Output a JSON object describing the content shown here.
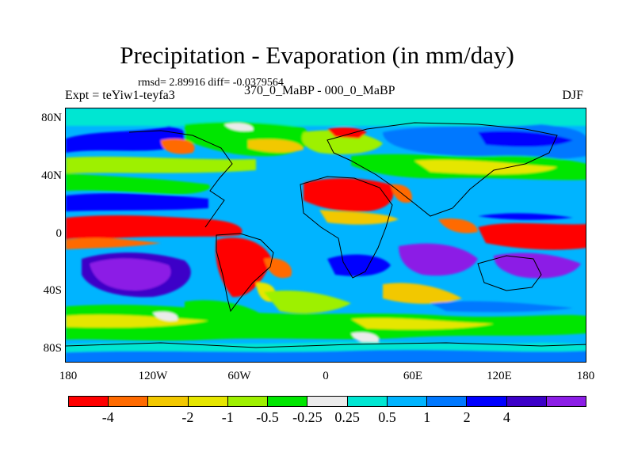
{
  "title": "Precipitation - Evaporation (in mm/day)",
  "stats": "rmsd= 2.89916 diff= -0.0379564",
  "experiment": "Expt = teYiw1-teyfa3",
  "case_label": "370_0_MaBP - 000_0_MaBP",
  "season": "DJF",
  "lat_labels": [
    "80N",
    "40N",
    "0",
    "40S",
    "80S"
  ],
  "lon_labels": [
    "180",
    "120W",
    "60W",
    "0",
    "60E",
    "120E",
    "180"
  ],
  "colorbar": {
    "colors": [
      "#ff0000",
      "#ff6a00",
      "#f2c800",
      "#e6e600",
      "#9ef000",
      "#00e600",
      "#ebebeb",
      "#00e6d2",
      "#00b4ff",
      "#0078ff",
      "#0000ff",
      "#3c00c8",
      "#8c1ee6"
    ],
    "labels": [
      "-4",
      "-2",
      "-1",
      "-0.5",
      "-0.25",
      "0.25",
      "0.5",
      "1",
      "2",
      "4"
    ]
  }
}
